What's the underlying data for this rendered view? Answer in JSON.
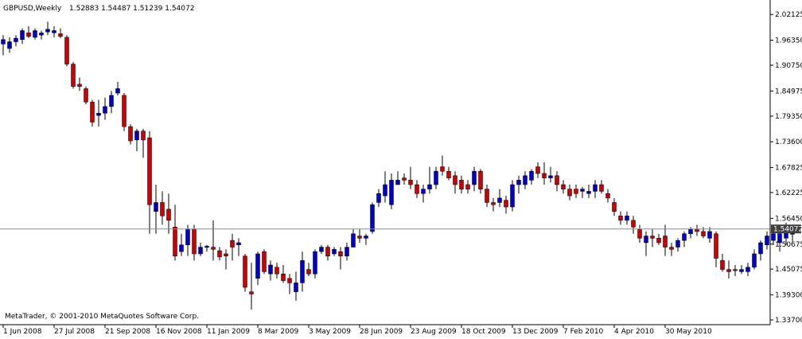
{
  "header": {
    "symbol_timeframe": "GBPUSD,Weekly",
    "ohlc_text": "1.52883 1.54487 1.51239 1.54072"
  },
  "copyright": "MetaTrader, © 2001-2010 MetaQuotes Software Corp.",
  "colors": {
    "bull": "#0000cc",
    "bear": "#cc0000",
    "wick": "#000000",
    "price_line": "#7f8c99",
    "axis": "#000000",
    "price_label_bg": "#404040"
  },
  "chart_data": {
    "type": "candlestick",
    "symbol": "GBPUSD",
    "timeframe": "Weekly",
    "ylim": [
      1.337,
      2.0215
    ],
    "y_ticks": [
      "2.02125",
      "1.96350",
      "1.90750",
      "1.84975",
      "1.79350",
      "1.73600",
      "1.67825",
      "1.62225",
      "1.56450",
      "1.50675",
      "1.45075",
      "1.39300",
      "1.33700"
    ],
    "current_price": "1.54072",
    "x_labels": [
      "1 Jun 2008",
      "27 Jul 2008",
      "21 Sep 2008",
      "16 Nov 2008",
      "11 Jan 2009",
      "8 Mar 2009",
      "3 May 2009",
      "28 Jun 2009",
      "23 Aug 2009",
      "18 Oct 2009",
      "13 Dec 2009",
      "7 Feb 2010",
      "4 Apr 2010",
      "30 May 2010"
    ],
    "candles": [
      {
        "o": 1.955,
        "h": 1.975,
        "l": 1.93,
        "c": 1.965
      },
      {
        "o": 1.945,
        "h": 1.97,
        "l": 1.935,
        "c": 1.96
      },
      {
        "o": 1.96,
        "h": 1.975,
        "l": 1.95,
        "c": 1.968
      },
      {
        "o": 1.965,
        "h": 1.99,
        "l": 1.955,
        "c": 1.985
      },
      {
        "o": 1.98,
        "h": 1.995,
        "l": 1.968,
        "c": 1.972
      },
      {
        "o": 1.97,
        "h": 1.99,
        "l": 1.965,
        "c": 1.985
      },
      {
        "o": 1.975,
        "h": 1.985,
        "l": 1.965,
        "c": 1.98
      },
      {
        "o": 1.982,
        "h": 2.005,
        "l": 1.975,
        "c": 1.988
      },
      {
        "o": 1.98,
        "h": 1.995,
        "l": 1.97,
        "c": 1.985
      },
      {
        "o": 1.978,
        "h": 1.99,
        "l": 1.968,
        "c": 1.972
      },
      {
        "o": 1.97,
        "h": 1.975,
        "l": 1.905,
        "c": 1.91
      },
      {
        "o": 1.91,
        "h": 1.915,
        "l": 1.855,
        "c": 1.86
      },
      {
        "o": 1.865,
        "h": 1.88,
        "l": 1.85,
        "c": 1.86
      },
      {
        "o": 1.855,
        "h": 1.86,
        "l": 1.82,
        "c": 1.825
      },
      {
        "o": 1.825,
        "h": 1.83,
        "l": 1.77,
        "c": 1.78
      },
      {
        "o": 1.795,
        "h": 1.83,
        "l": 1.77,
        "c": 1.8
      },
      {
        "o": 1.8,
        "h": 1.835,
        "l": 1.785,
        "c": 1.815
      },
      {
        "o": 1.815,
        "h": 1.85,
        "l": 1.8,
        "c": 1.84
      },
      {
        "o": 1.845,
        "h": 1.87,
        "l": 1.84,
        "c": 1.855
      },
      {
        "o": 1.84,
        "h": 1.845,
        "l": 1.76,
        "c": 1.77
      },
      {
        "o": 1.77,
        "h": 1.775,
        "l": 1.73,
        "c": 1.738
      },
      {
        "o": 1.74,
        "h": 1.765,
        "l": 1.715,
        "c": 1.76
      },
      {
        "o": 1.76,
        "h": 1.765,
        "l": 1.7,
        "c": 1.74
      },
      {
        "o": 1.745,
        "h": 1.76,
        "l": 1.53,
        "c": 1.595
      },
      {
        "o": 1.58,
        "h": 1.64,
        "l": 1.53,
        "c": 1.6
      },
      {
        "o": 1.6,
        "h": 1.625,
        "l": 1.55,
        "c": 1.57
      },
      {
        "o": 1.585,
        "h": 1.62,
        "l": 1.53,
        "c": 1.56
      },
      {
        "o": 1.545,
        "h": 1.595,
        "l": 1.47,
        "c": 1.48
      },
      {
        "o": 1.49,
        "h": 1.53,
        "l": 1.48,
        "c": 1.505
      },
      {
        "o": 1.505,
        "h": 1.55,
        "l": 1.48,
        "c": 1.54
      },
      {
        "o": 1.54,
        "h": 1.55,
        "l": 1.47,
        "c": 1.485
      },
      {
        "o": 1.485,
        "h": 1.51,
        "l": 1.48,
        "c": 1.5
      },
      {
        "o": 1.5,
        "h": 1.505,
        "l": 1.49,
        "c": 1.502
      },
      {
        "o": 1.5,
        "h": 1.56,
        "l": 1.47,
        "c": 1.495
      },
      {
        "o": 1.492,
        "h": 1.5,
        "l": 1.47,
        "c": 1.478
      },
      {
        "o": 1.485,
        "h": 1.495,
        "l": 1.45,
        "c": 1.48
      },
      {
        "o": 1.515,
        "h": 1.53,
        "l": 1.47,
        "c": 1.5
      },
      {
        "o": 1.505,
        "h": 1.52,
        "l": 1.48,
        "c": 1.51
      },
      {
        "o": 1.48,
        "h": 1.485,
        "l": 1.4,
        "c": 1.41
      },
      {
        "o": 1.4,
        "h": 1.465,
        "l": 1.36,
        "c": 1.395
      },
      {
        "o": 1.43,
        "h": 1.49,
        "l": 1.415,
        "c": 1.485
      },
      {
        "o": 1.49,
        "h": 1.495,
        "l": 1.44,
        "c": 1.445
      },
      {
        "o": 1.44,
        "h": 1.47,
        "l": 1.425,
        "c": 1.46
      },
      {
        "o": 1.455,
        "h": 1.465,
        "l": 1.43,
        "c": 1.44
      },
      {
        "o": 1.44,
        "h": 1.46,
        "l": 1.42,
        "c": 1.425
      },
      {
        "o": 1.43,
        "h": 1.44,
        "l": 1.395,
        "c": 1.42
      },
      {
        "o": 1.4,
        "h": 1.445,
        "l": 1.38,
        "c": 1.42
      },
      {
        "o": 1.42,
        "h": 1.49,
        "l": 1.4,
        "c": 1.47
      },
      {
        "o": 1.45,
        "h": 1.465,
        "l": 1.435,
        "c": 1.44
      },
      {
        "o": 1.44,
        "h": 1.495,
        "l": 1.43,
        "c": 1.49
      },
      {
        "o": 1.49,
        "h": 1.505,
        "l": 1.485,
        "c": 1.5
      },
      {
        "o": 1.5,
        "h": 1.505,
        "l": 1.47,
        "c": 1.48
      },
      {
        "o": 1.485,
        "h": 1.5,
        "l": 1.48,
        "c": 1.495
      },
      {
        "o": 1.49,
        "h": 1.5,
        "l": 1.45,
        "c": 1.48
      },
      {
        "o": 1.48,
        "h": 1.51,
        "l": 1.47,
        "c": 1.5
      },
      {
        "o": 1.5,
        "h": 1.54,
        "l": 1.5,
        "c": 1.53
      },
      {
        "o": 1.525,
        "h": 1.54,
        "l": 1.51,
        "c": 1.52
      },
      {
        "o": 1.52,
        "h": 1.53,
        "l": 1.505,
        "c": 1.525
      },
      {
        "o": 1.535,
        "h": 1.6,
        "l": 1.53,
        "c": 1.595
      },
      {
        "o": 1.6,
        "h": 1.63,
        "l": 1.59,
        "c": 1.62
      },
      {
        "o": 1.615,
        "h": 1.67,
        "l": 1.6,
        "c": 1.64
      },
      {
        "o": 1.595,
        "h": 1.665,
        "l": 1.585,
        "c": 1.65
      },
      {
        "o": 1.64,
        "h": 1.67,
        "l": 1.64,
        "c": 1.65
      },
      {
        "o": 1.655,
        "h": 1.665,
        "l": 1.64,
        "c": 1.65
      },
      {
        "o": 1.65,
        "h": 1.68,
        "l": 1.63,
        "c": 1.64
      },
      {
        "o": 1.64,
        "h": 1.65,
        "l": 1.61,
        "c": 1.62
      },
      {
        "o": 1.62,
        "h": 1.64,
        "l": 1.6,
        "c": 1.63
      },
      {
        "o": 1.63,
        "h": 1.68,
        "l": 1.62,
        "c": 1.64
      },
      {
        "o": 1.64,
        "h": 1.68,
        "l": 1.63,
        "c": 1.67
      },
      {
        "o": 1.68,
        "h": 1.705,
        "l": 1.66,
        "c": 1.67
      },
      {
        "o": 1.67,
        "h": 1.68,
        "l": 1.65,
        "c": 1.655
      },
      {
        "o": 1.66,
        "h": 1.67,
        "l": 1.62,
        "c": 1.64
      },
      {
        "o": 1.65,
        "h": 1.66,
        "l": 1.62,
        "c": 1.63
      },
      {
        "o": 1.64,
        "h": 1.65,
        "l": 1.62,
        "c": 1.63
      },
      {
        "o": 1.64,
        "h": 1.68,
        "l": 1.625,
        "c": 1.67
      },
      {
        "o": 1.67,
        "h": 1.675,
        "l": 1.62,
        "c": 1.63
      },
      {
        "o": 1.63,
        "h": 1.64,
        "l": 1.59,
        "c": 1.6
      },
      {
        "o": 1.6,
        "h": 1.61,
        "l": 1.58,
        "c": 1.595
      },
      {
        "o": 1.6,
        "h": 1.63,
        "l": 1.59,
        "c": 1.61
      },
      {
        "o": 1.605,
        "h": 1.615,
        "l": 1.575,
        "c": 1.59
      },
      {
        "o": 1.59,
        "h": 1.65,
        "l": 1.58,
        "c": 1.64
      },
      {
        "o": 1.64,
        "h": 1.66,
        "l": 1.62,
        "c": 1.65
      },
      {
        "o": 1.64,
        "h": 1.67,
        "l": 1.63,
        "c": 1.66
      },
      {
        "o": 1.65,
        "h": 1.675,
        "l": 1.64,
        "c": 1.67
      },
      {
        "o": 1.68,
        "h": 1.69,
        "l": 1.655,
        "c": 1.665
      },
      {
        "o": 1.665,
        "h": 1.69,
        "l": 1.64,
        "c": 1.655
      },
      {
        "o": 1.655,
        "h": 1.68,
        "l": 1.645,
        "c": 1.66
      },
      {
        "o": 1.66,
        "h": 1.67,
        "l": 1.625,
        "c": 1.64
      },
      {
        "o": 1.64,
        "h": 1.65,
        "l": 1.62,
        "c": 1.63
      },
      {
        "o": 1.63,
        "h": 1.64,
        "l": 1.605,
        "c": 1.615
      },
      {
        "o": 1.63,
        "h": 1.64,
        "l": 1.61,
        "c": 1.62
      },
      {
        "o": 1.625,
        "h": 1.635,
        "l": 1.61,
        "c": 1.63
      },
      {
        "o": 1.62,
        "h": 1.64,
        "l": 1.61,
        "c": 1.625
      },
      {
        "o": 1.625,
        "h": 1.65,
        "l": 1.61,
        "c": 1.64
      },
      {
        "o": 1.64,
        "h": 1.65,
        "l": 1.62,
        "c": 1.625
      },
      {
        "o": 1.62,
        "h": 1.63,
        "l": 1.6,
        "c": 1.61
      },
      {
        "o": 1.6,
        "h": 1.61,
        "l": 1.57,
        "c": 1.58
      },
      {
        "o": 1.57,
        "h": 1.58,
        "l": 1.55,
        "c": 1.56
      },
      {
        "o": 1.56,
        "h": 1.58,
        "l": 1.55,
        "c": 1.57
      },
      {
        "o": 1.56,
        "h": 1.57,
        "l": 1.53,
        "c": 1.545
      },
      {
        "o": 1.54,
        "h": 1.55,
        "l": 1.51,
        "c": 1.52
      },
      {
        "o": 1.51,
        "h": 1.535,
        "l": 1.48,
        "c": 1.525
      },
      {
        "o": 1.525,
        "h": 1.54,
        "l": 1.5,
        "c": 1.52
      },
      {
        "o": 1.52,
        "h": 1.53,
        "l": 1.505,
        "c": 1.51
      },
      {
        "o": 1.525,
        "h": 1.55,
        "l": 1.48,
        "c": 1.5
      },
      {
        "o": 1.5,
        "h": 1.51,
        "l": 1.48,
        "c": 1.495
      },
      {
        "o": 1.5,
        "h": 1.52,
        "l": 1.49,
        "c": 1.515
      },
      {
        "o": 1.515,
        "h": 1.535,
        "l": 1.5,
        "c": 1.53
      },
      {
        "o": 1.53,
        "h": 1.545,
        "l": 1.52,
        "c": 1.54
      },
      {
        "o": 1.54,
        "h": 1.55,
        "l": 1.525,
        "c": 1.535
      },
      {
        "o": 1.535,
        "h": 1.545,
        "l": 1.52,
        "c": 1.525
      },
      {
        "o": 1.52,
        "h": 1.545,
        "l": 1.51,
        "c": 1.535
      },
      {
        "o": 1.53,
        "h": 1.535,
        "l": 1.455,
        "c": 1.475
      },
      {
        "o": 1.47,
        "h": 1.485,
        "l": 1.445,
        "c": 1.45
      },
      {
        "o": 1.45,
        "h": 1.47,
        "l": 1.43,
        "c": 1.445
      },
      {
        "o": 1.45,
        "h": 1.46,
        "l": 1.435,
        "c": 1.448
      },
      {
        "o": 1.445,
        "h": 1.46,
        "l": 1.44,
        "c": 1.45
      },
      {
        "o": 1.445,
        "h": 1.465,
        "l": 1.435,
        "c": 1.455
      },
      {
        "o": 1.455,
        "h": 1.495,
        "l": 1.45,
        "c": 1.485
      },
      {
        "o": 1.485,
        "h": 1.515,
        "l": 1.47,
        "c": 1.51
      },
      {
        "o": 1.505,
        "h": 1.535,
        "l": 1.495,
        "c": 1.525
      },
      {
        "o": 1.515,
        "h": 1.54,
        "l": 1.505,
        "c": 1.53
      },
      {
        "o": 1.51,
        "h": 1.535,
        "l": 1.49,
        "c": 1.53
      },
      {
        "o": 1.52,
        "h": 1.555,
        "l": 1.505,
        "c": 1.545
      },
      {
        "o": 1.5288,
        "h": 1.5449,
        "l": 1.5124,
        "c": 1.5407
      }
    ]
  }
}
